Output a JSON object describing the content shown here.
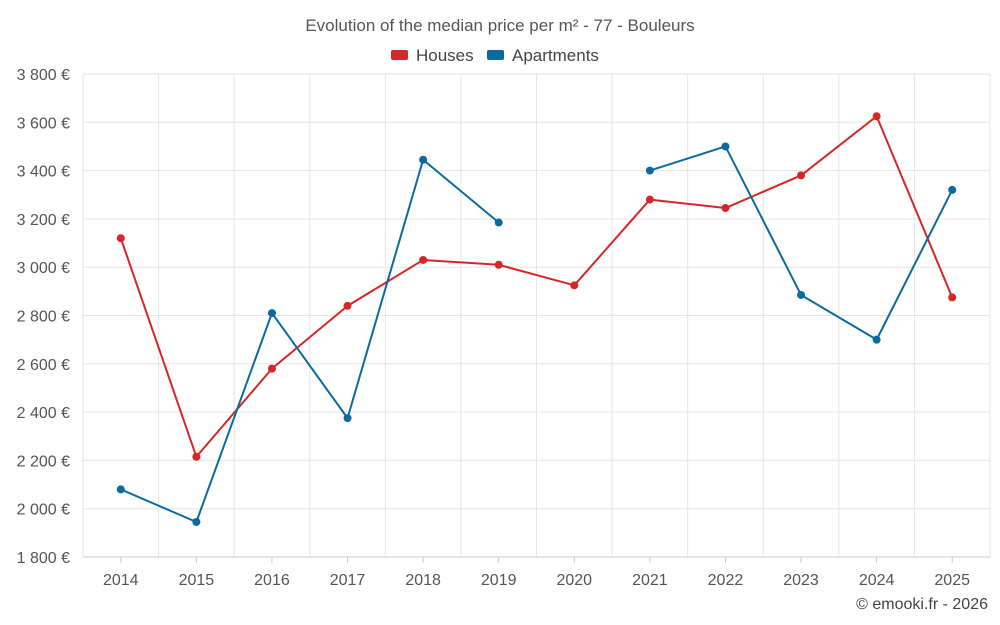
{
  "chart_data": {
    "type": "line",
    "title": "Evolution of the median price per m² - 77 - Bouleurs",
    "categories": [
      "2014",
      "2015",
      "2016",
      "2017",
      "2018",
      "2019",
      "2020",
      "2021",
      "2022",
      "2023",
      "2024",
      "2025"
    ],
    "series": [
      {
        "name": "Houses",
        "color": "#d62728",
        "values": [
          3120,
          2215,
          2580,
          2840,
          3030,
          3010,
          2925,
          3280,
          3245,
          3380,
          3625,
          2875
        ]
      },
      {
        "name": "Apartments",
        "color": "#0b6aa0",
        "values": [
          2080,
          1945,
          2810,
          2375,
          3445,
          3185,
          null,
          3400,
          3500,
          2885,
          2700,
          3320
        ]
      }
    ],
    "ylim": [
      1800,
      3800
    ],
    "yticks": [
      1800,
      2000,
      2200,
      2400,
      2600,
      2800,
      3000,
      3200,
      3400,
      3600,
      3800
    ],
    "ytick_labels": [
      "1 800 €",
      "2 000 €",
      "2 200 €",
      "2 400 €",
      "2 600 €",
      "2 800 €",
      "3 000 €",
      "3 200 €",
      "3 400 €",
      "3 600 €",
      "3 800 €"
    ],
    "grid": true,
    "legend_position": "top-center",
    "credit": "© emooki.fr - 2026"
  }
}
